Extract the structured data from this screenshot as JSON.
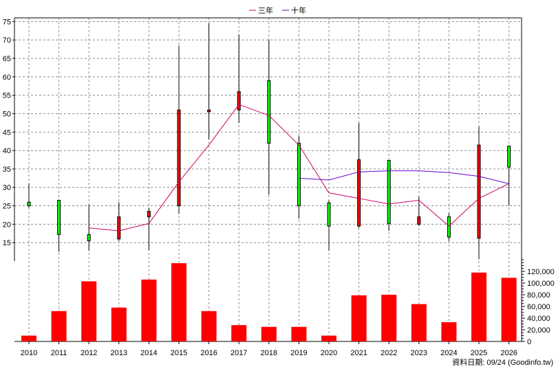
{
  "chart_data": {
    "type": "candlestick",
    "footer": "資料日期: 09/24 (Goodinfo.tw)",
    "legend": [
      {
        "name": "三年",
        "color": "#cc0066"
      },
      {
        "name": "十年",
        "color": "#6600cc"
      }
    ],
    "years": [
      "2010",
      "2011",
      "2012",
      "2013",
      "2014",
      "2015",
      "2016",
      "2017",
      "2018",
      "2019",
      "2020",
      "2021",
      "2022",
      "2023",
      "2024",
      "2025",
      "2026"
    ],
    "price_axis": {
      "min": 10,
      "max": 76,
      "ticks": [
        15,
        20,
        25,
        30,
        35,
        40,
        45,
        50,
        55,
        60,
        65,
        70,
        75
      ],
      "grid": true
    },
    "volume_axis": {
      "min": 0,
      "max": 140000,
      "ticks": [
        0,
        20000,
        40000,
        60000,
        80000,
        100000,
        120000
      ],
      "tick_labels": [
        "0",
        "20,000",
        "40,000",
        "60,000",
        "80,000",
        "100,000",
        "120,000"
      ]
    },
    "candles": [
      {
        "open": 25.0,
        "close": 26.0,
        "high": 31.0,
        "low": 24.5,
        "color": "green"
      },
      {
        "open": 26.5,
        "close": 17.2,
        "high": 26.5,
        "low": 12.5,
        "color": "green"
      },
      {
        "open": 17.2,
        "close": 15.5,
        "high": 25.3,
        "low": 12.8,
        "color": "green"
      },
      {
        "open": 16.0,
        "close": 22.0,
        "high": 26.0,
        "low": 15.5,
        "color": "red"
      },
      {
        "open": 22.0,
        "close": 23.5,
        "high": 24.5,
        "low": 13.0,
        "color": "red"
      },
      {
        "open": 25.0,
        "close": 51.0,
        "high": 68.5,
        "low": 22.8,
        "color": "red"
      },
      {
        "open": 50.5,
        "close": 51.0,
        "high": 74.5,
        "low": 43.0,
        "color": "red"
      },
      {
        "open": 51.0,
        "close": 56.0,
        "high": 71.5,
        "low": 47.5,
        "color": "red"
      },
      {
        "open": 59.0,
        "close": 42.0,
        "high": 70.0,
        "low": 28.0,
        "color": "green"
      },
      {
        "open": 42.0,
        "close": 25.0,
        "high": 44.0,
        "low": 21.5,
        "color": "green"
      },
      {
        "open": 25.8,
        "close": 19.5,
        "high": 26.5,
        "low": 12.8,
        "color": "green"
      },
      {
        "open": 19.5,
        "close": 37.5,
        "high": 47.5,
        "low": 19.0,
        "color": "red"
      },
      {
        "open": 37.3,
        "close": 20.2,
        "high": 37.5,
        "low": 18.2,
        "color": "green"
      },
      {
        "open": 20.0,
        "close": 22.0,
        "high": 27.5,
        "low": 19.5,
        "color": "red"
      },
      {
        "open": 22.0,
        "close": 16.5,
        "high": 23.0,
        "low": 15.5,
        "color": "green"
      },
      {
        "open": 16.2,
        "close": 41.5,
        "high": 46.5,
        "low": 10.5,
        "color": "red"
      },
      {
        "open": 41.2,
        "close": 35.5,
        "high": 41.2,
        "low": 25.0,
        "color": "green"
      }
    ],
    "ma3": [
      null,
      null,
      19.0,
      18.2,
      20.2,
      31.5,
      41.5,
      52.5,
      49.5,
      41.5,
      28.5,
      27.0,
      25.5,
      26.5,
      19.5,
      27.0,
      31.0
    ],
    "ma10": [
      null,
      null,
      null,
      null,
      null,
      null,
      null,
      null,
      null,
      32.5,
      32.0,
      34.2,
      34.5,
      34.5,
      34.0,
      33.0,
      31.0
    ],
    "volume": [
      10000,
      52000,
      103000,
      58000,
      106000,
      134000,
      52000,
      28000,
      25000,
      25000,
      10000,
      79000,
      80000,
      64000,
      33000,
      118000,
      109000
    ]
  }
}
